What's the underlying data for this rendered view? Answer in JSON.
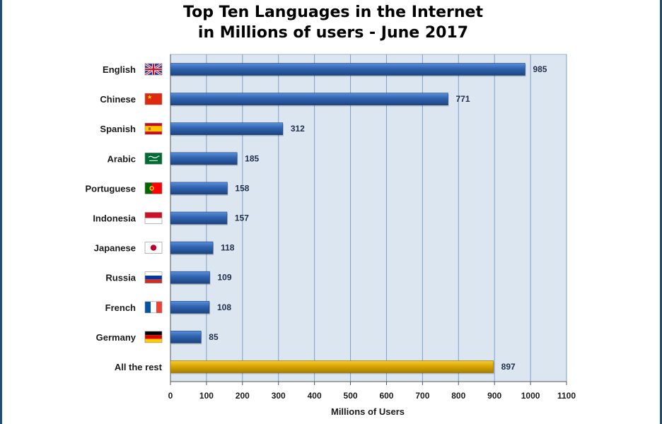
{
  "chart_data": {
    "type": "bar",
    "orientation": "horizontal",
    "title": "Top Ten Languages in the Internet",
    "subtitle": "in Millions of users - June 2017",
    "xlabel": "Millions of Users",
    "ylabel": "",
    "xlim": [
      0,
      1100
    ],
    "x_ticks": [
      0,
      100,
      200,
      300,
      400,
      500,
      600,
      700,
      800,
      900,
      1000,
      1100
    ],
    "grid": true,
    "categories": [
      "English",
      "Chinese",
      "Spanish",
      "Arabic",
      "Portuguese",
      "Indonesia",
      "Japanese",
      "Russia",
      "French",
      "Germany",
      "All the rest"
    ],
    "values": [
      985,
      771,
      312,
      185,
      158,
      157,
      118,
      109,
      108,
      85,
      897
    ],
    "flags": [
      "uk-flag-icon",
      "china-flag-icon",
      "spain-flag-icon",
      "saudi-flag-icon",
      "portugal-flag-icon",
      "indonesia-flag-icon",
      "japan-flag-icon",
      "russia-flag-icon",
      "france-flag-icon",
      "germany-flag-icon",
      ""
    ],
    "colors": {
      "bar": "#2f63b0",
      "bar_highlight": "#d9a800",
      "plot_background": "#dce6f1",
      "grid": "#7f9fc8",
      "frame": "#1f4e79"
    }
  }
}
